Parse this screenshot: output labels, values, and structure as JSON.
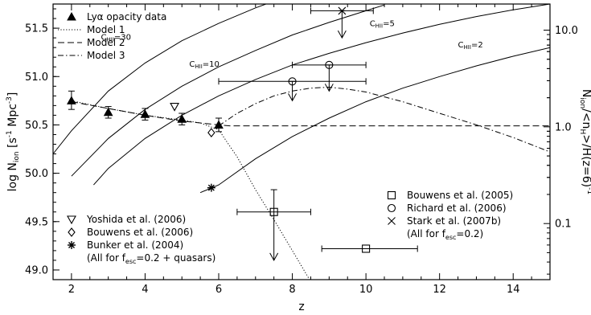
{
  "chart_data": {
    "type": "scatter",
    "xlabel": "z",
    "ylabel": "log Ṅ_ion [s⁻¹ Mpc⁻³]",
    "ylabel_parts": {
      "prefix": "log N",
      "sub": "ion",
      "unit_open": " [s",
      "exp1": "-1",
      "unit_mid": " Mpc",
      "exp2": "-3",
      "unit_close": "]"
    },
    "y2label_parts": {
      "n": "N",
      "ion": "ion",
      "slash1": "/<n",
      "h": "H",
      "rest": ">/H(z=6)",
      "exp": "-1"
    },
    "xlim": [
      1.5,
      15.0
    ],
    "ylim": [
      48.9,
      51.75
    ],
    "xticks": [
      2,
      4,
      6,
      8,
      10,
      12,
      14
    ],
    "yticks": [
      49.0,
      49.5,
      50.0,
      50.5,
      51.0,
      51.5
    ],
    "xtick_labels": [
      "2",
      "4",
      "6",
      "8",
      "10",
      "12",
      "14"
    ],
    "ytick_labels": [
      "49.0",
      "49.5",
      "50.0",
      "50.5",
      "51.0",
      "51.5"
    ],
    "y2ticks": [
      {
        "label": "10.0",
        "log": 51.48
      },
      {
        "label": "1.0",
        "log": 50.48
      },
      {
        "label": "0.1",
        "log": 49.48
      }
    ],
    "curves": [
      {
        "label": "C",
        "sub": "HII",
        "suffix": "=30",
        "points": [
          [
            1.5,
            50.2
          ],
          [
            2,
            50.44
          ],
          [
            3,
            50.85
          ],
          [
            4,
            51.14
          ],
          [
            5,
            51.37
          ],
          [
            6,
            51.55
          ],
          [
            7,
            51.71
          ],
          [
            7.5,
            51.78
          ]
        ],
        "label_at": [
          2.8,
          51.38
        ]
      },
      {
        "label": "C",
        "sub": "HII",
        "suffix": "=10",
        "points": [
          [
            2,
            49.97
          ],
          [
            3,
            50.36
          ],
          [
            4,
            50.66
          ],
          [
            5,
            50.9
          ],
          [
            6,
            51.1
          ],
          [
            7,
            51.27
          ],
          [
            8,
            51.43
          ],
          [
            9,
            51.56
          ],
          [
            10,
            51.68
          ],
          [
            10.5,
            51.74
          ]
        ],
        "label_at": [
          5.2,
          51.1
        ]
      },
      {
        "label": "C",
        "sub": "HII",
        "suffix": "=5",
        "points": [
          [
            2.6,
            49.88
          ],
          [
            3,
            50.05
          ],
          [
            4,
            50.36
          ],
          [
            5,
            50.6
          ],
          [
            6,
            50.8
          ],
          [
            7,
            50.97
          ],
          [
            8,
            51.12
          ],
          [
            9,
            51.24
          ],
          [
            10,
            51.35
          ],
          [
            11,
            51.45
          ],
          [
            12,
            51.54
          ],
          [
            13,
            51.62
          ],
          [
            14,
            51.69
          ],
          [
            15,
            51.75
          ]
        ],
        "label_at": [
          10.1,
          51.52
        ]
      },
      {
        "label": "C",
        "sub": "HII",
        "suffix": "=2",
        "points": [
          [
            5.5,
            49.8
          ],
          [
            6,
            49.88
          ],
          [
            7,
            50.15
          ],
          [
            8,
            50.38
          ],
          [
            9,
            50.57
          ],
          [
            10,
            50.74
          ],
          [
            11,
            50.88
          ],
          [
            12,
            51.0
          ],
          [
            13,
            51.11
          ],
          [
            14,
            51.21
          ],
          [
            15,
            51.3
          ]
        ],
        "label_at": [
          12.5,
          51.3
        ]
      }
    ],
    "series": [
      {
        "name": "Lyα opacity data",
        "marker": "filled-triangle",
        "points": [
          [
            2,
            50.75,
            0.09,
            0.1
          ],
          [
            3,
            50.63,
            0.06,
            0.06
          ],
          [
            4,
            50.61,
            0.06,
            0.06
          ],
          [
            5,
            50.56,
            0.06,
            0.06
          ],
          [
            6,
            50.5,
            0.07,
            0.07
          ]
        ]
      },
      {
        "name": "Model 1",
        "style": "dotted",
        "points": [
          [
            2,
            50.75
          ],
          [
            3,
            50.67
          ],
          [
            4,
            50.6
          ],
          [
            5,
            50.55
          ],
          [
            5.5,
            50.52
          ],
          [
            6,
            50.45
          ],
          [
            6.5,
            50.17
          ],
          [
            7,
            49.83
          ],
          [
            7.5,
            49.52
          ],
          [
            8,
            49.2
          ],
          [
            8.5,
            48.88
          ]
        ]
      },
      {
        "name": "Model 2",
        "style": "dashed",
        "points": [
          [
            2,
            50.74
          ],
          [
            3,
            50.67
          ],
          [
            4,
            50.6
          ],
          [
            5,
            50.54
          ],
          [
            6,
            50.5
          ],
          [
            6.3,
            50.49
          ],
          [
            15,
            50.49
          ]
        ]
      },
      {
        "name": "Model 3",
        "style": "dashdot",
        "points": [
          [
            6,
            50.49
          ],
          [
            6.5,
            50.62
          ],
          [
            7,
            50.72
          ],
          [
            7.5,
            50.8
          ],
          [
            8,
            50.85
          ],
          [
            8.5,
            50.88
          ],
          [
            9,
            50.89
          ],
          [
            9.5,
            50.87
          ],
          [
            10,
            50.84
          ],
          [
            11,
            50.74
          ],
          [
            12,
            50.62
          ],
          [
            13,
            50.5
          ],
          [
            14,
            50.37
          ],
          [
            15,
            50.22
          ]
        ]
      },
      {
        "name": "Yoshida et al. (2006)",
        "marker": "open-triangle-down",
        "points": [
          [
            4.8,
            50.69
          ]
        ]
      },
      {
        "name": "Bouwens et al. (2006)",
        "marker": "open-diamond",
        "points": [
          [
            5.8,
            50.42
          ]
        ]
      },
      {
        "name": "Bunker et al. (2004)",
        "marker": "asterisk",
        "points": [
          [
            5.8,
            49.85
          ]
        ]
      },
      {
        "name": "Bouwens et al. (2005)",
        "marker": "open-square",
        "points": [
          {
            "x": 7.5,
            "y": 49.6,
            "xerr": [
              6.5,
              8.5
            ],
            "yerr": [
              49.1,
              49.83
            ],
            "upper": true
          },
          {
            "x": 10,
            "y": 49.22,
            "xerr": [
              8.8,
              11.4
            ],
            "yerr": null,
            "upper": false
          }
        ]
      },
      {
        "name": "Richard et al. (2006)",
        "marker": "open-circle",
        "points": [
          {
            "x": 8,
            "y": 50.95,
            "xerr": [
              6,
              10
            ],
            "yerr": [
              50.75,
              50.95
            ],
            "upper": true
          },
          {
            "x": 9,
            "y": 51.12,
            "xerr": [
              8,
              10
            ],
            "yerr": [
              50.85,
              51.12
            ],
            "upper": true
          }
        ]
      },
      {
        "name": "Stark et al. (2007b)",
        "marker": "cross",
        "points": [
          {
            "x": 9.35,
            "y": 51.68,
            "xerr": [
              8.5,
              10.2
            ],
            "yerr": [
              51.4,
              51.68
            ],
            "upper": true
          }
        ]
      }
    ],
    "legend_top_left": {
      "position": "top-left",
      "entries": [
        {
          "text": "Lyα opacity data",
          "marker": "filled-triangle"
        },
        {
          "text": "Model 1",
          "style": "dotted"
        },
        {
          "text": "Model 2",
          "style": "dashed"
        },
        {
          "text": "Model 3",
          "style": "dashdot"
        }
      ]
    },
    "legend_bottom_left": {
      "position": "bottom-left",
      "entries": [
        {
          "text": "Yoshida et al. (2006)",
          "marker": "open-triangle-down"
        },
        {
          "text": "Bouwens et al. (2006)",
          "marker": "open-diamond"
        },
        {
          "text": "Bunker et al. (2004)",
          "marker": "asterisk"
        }
      ],
      "note_prefix": "(All for f",
      "note_sub": "esc",
      "note_suffix": "=0.2 + quasars)"
    },
    "legend_bottom_right": {
      "position": "bottom-right",
      "entries": [
        {
          "text": "Bouwens et al. (2005)",
          "marker": "open-square"
        },
        {
          "text": "Richard et al. (2006)",
          "marker": "open-circle"
        },
        {
          "text": "Stark et al. (2007b)",
          "marker": "cross"
        }
      ],
      "note_prefix": "(All for f",
      "note_sub": "esc",
      "note_suffix": "=0.2)"
    }
  }
}
